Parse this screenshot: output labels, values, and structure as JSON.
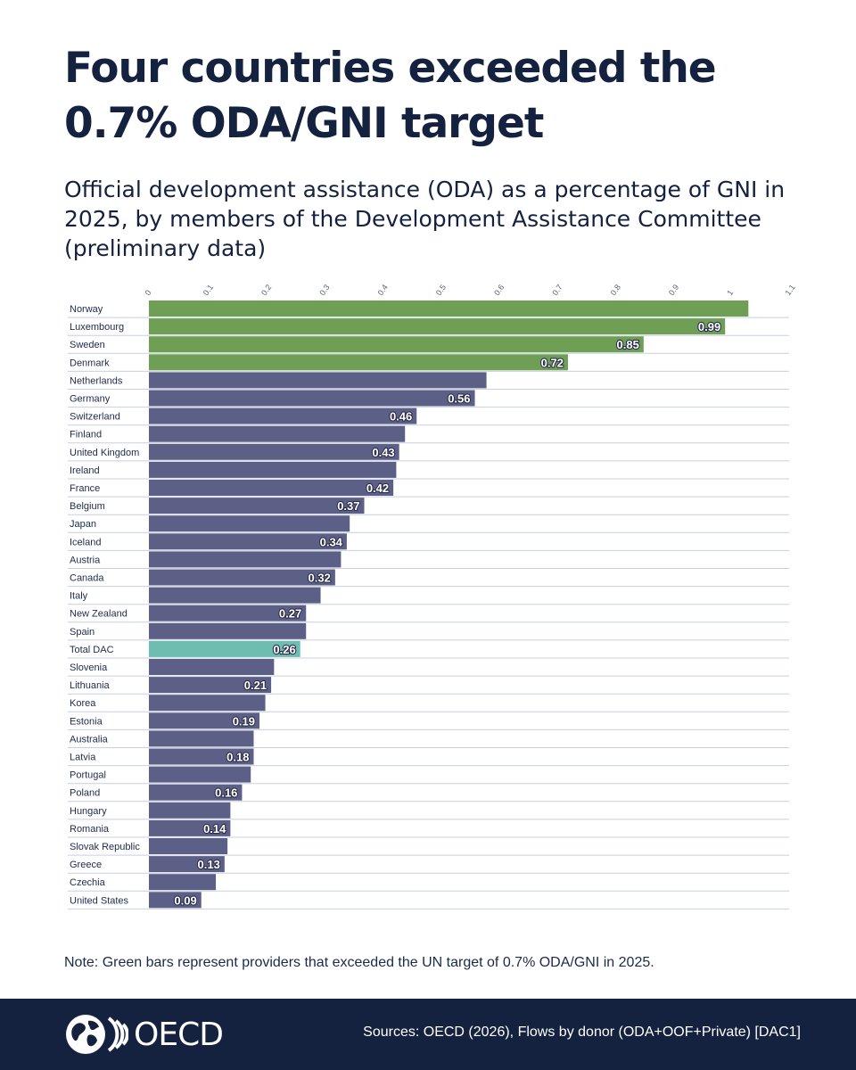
{
  "title": "Four countries exceeded the 0.7% ODA/GNI target",
  "subtitle": "Official development assistance (ODA) as a percentage of GNI in 2025, by members of the Development Assistance Committee (preliminary data)",
  "note": "Note: Green bars represent providers that exceeded the UN target of 0.7% ODA/GNI in 2025.",
  "footer": {
    "logo_text": "OECD",
    "sources": "Sources: OECD (2026), Flows by donor (ODA+OOF+Private) [DAC1]"
  },
  "colors": {
    "exceeded": "#6e9f55",
    "other": "#5d6086",
    "total": "#6dbdb1",
    "grid": "#c9cfe0",
    "footer_bg": "#14213f"
  },
  "chart_data": {
    "type": "bar",
    "orientation": "horizontal",
    "xlim": [
      0,
      1.1
    ],
    "xticks": [
      "0",
      "0.1",
      "0.2",
      "0.3",
      "0.4",
      "0.5",
      "0.6",
      "0.7",
      "0.8",
      "0.9",
      "1",
      "1.1"
    ],
    "bars": [
      {
        "label": "Norway",
        "value": 1.03,
        "group": "exceeded"
      },
      {
        "label": "Luxembourg",
        "value": 0.99,
        "group": "exceeded",
        "data_label": "0.99"
      },
      {
        "label": "Sweden",
        "value": 0.85,
        "group": "exceeded",
        "data_label": "0.85"
      },
      {
        "label": "Denmark",
        "value": 0.72,
        "group": "exceeded",
        "data_label": "0.72"
      },
      {
        "label": "Netherlands",
        "value": 0.58,
        "group": "other"
      },
      {
        "label": "Germany",
        "value": 0.56,
        "group": "other",
        "data_label": "0.56"
      },
      {
        "label": "Switzerland",
        "value": 0.46,
        "group": "other",
        "data_label": "0.46"
      },
      {
        "label": "Finland",
        "value": 0.44,
        "group": "other"
      },
      {
        "label": "United Kingdom",
        "value": 0.43,
        "group": "other",
        "data_label": "0.43"
      },
      {
        "label": "Ireland",
        "value": 0.425,
        "group": "other"
      },
      {
        "label": "France",
        "value": 0.42,
        "group": "other",
        "data_label": "0.42"
      },
      {
        "label": "Belgium",
        "value": 0.37,
        "group": "other",
        "data_label": "0.37"
      },
      {
        "label": "Japan",
        "value": 0.345,
        "group": "other"
      },
      {
        "label": "Iceland",
        "value": 0.34,
        "group": "other",
        "data_label": "0.34"
      },
      {
        "label": "Austria",
        "value": 0.33,
        "group": "other"
      },
      {
        "label": "Canada",
        "value": 0.32,
        "group": "other",
        "data_label": "0.32"
      },
      {
        "label": "Italy",
        "value": 0.295,
        "group": "other"
      },
      {
        "label": "New Zealand",
        "value": 0.27,
        "group": "other",
        "data_label": "0.27"
      },
      {
        "label": "Spain",
        "value": 0.27,
        "group": "other"
      },
      {
        "label": "Total DAC",
        "value": 0.26,
        "group": "total",
        "data_label": "0.26"
      },
      {
        "label": "Slovenia",
        "value": 0.215,
        "group": "other"
      },
      {
        "label": "Lithuania",
        "value": 0.21,
        "group": "other",
        "data_label": "0.21"
      },
      {
        "label": "Korea",
        "value": 0.2,
        "group": "other"
      },
      {
        "label": "Estonia",
        "value": 0.19,
        "group": "other",
        "data_label": "0.19"
      },
      {
        "label": "Australia",
        "value": 0.18,
        "group": "other"
      },
      {
        "label": "Latvia",
        "value": 0.18,
        "group": "other",
        "data_label": "0.18"
      },
      {
        "label": "Portugal",
        "value": 0.175,
        "group": "other"
      },
      {
        "label": "Poland",
        "value": 0.16,
        "group": "other",
        "data_label": "0.16"
      },
      {
        "label": "Hungary",
        "value": 0.14,
        "group": "other"
      },
      {
        "label": "Romania",
        "value": 0.14,
        "group": "other",
        "data_label": "0.14"
      },
      {
        "label": "Slovak Republic",
        "value": 0.135,
        "group": "other"
      },
      {
        "label": "Greece",
        "value": 0.13,
        "group": "other",
        "data_label": "0.13"
      },
      {
        "label": "Czechia",
        "value": 0.115,
        "group": "other"
      },
      {
        "label": "United States",
        "value": 0.09,
        "group": "other",
        "data_label": "0.09"
      }
    ]
  }
}
